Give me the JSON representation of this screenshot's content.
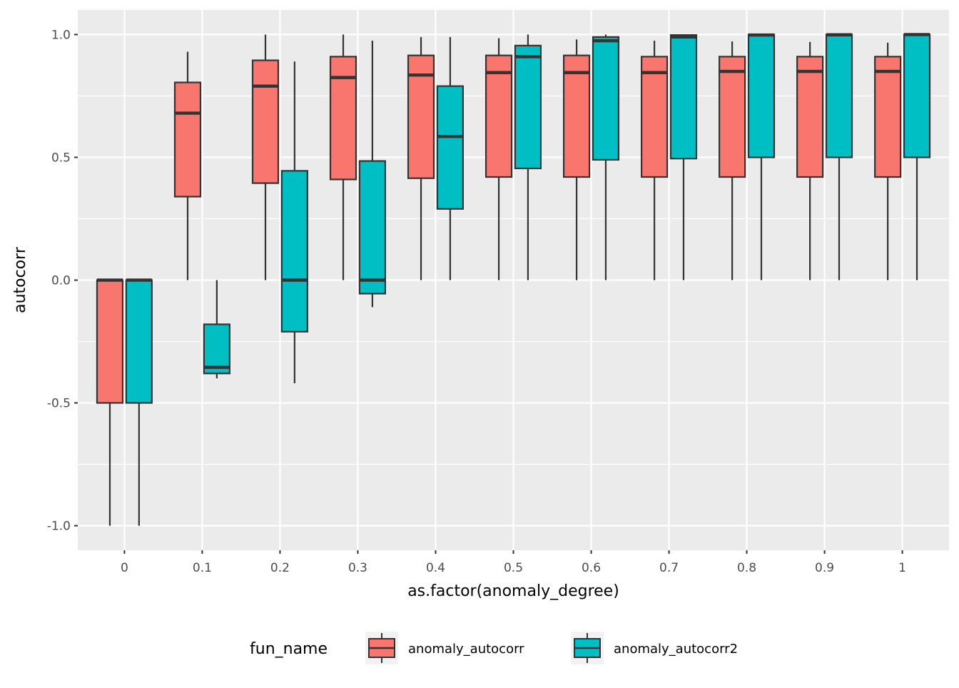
{
  "chart_data": {
    "type": "boxplot",
    "title": "",
    "xlabel": "as.factor(anomaly_degree)",
    "ylabel": "autocorr",
    "categories": [
      "0",
      "0.1",
      "0.2",
      "0.3",
      "0.4",
      "0.5",
      "0.6",
      "0.7",
      "0.8",
      "0.9",
      "1"
    ],
    "ylim": [
      -1.1,
      1.1
    ],
    "yticks": [
      -1.0,
      -0.5,
      0.0,
      0.5,
      1.0
    ],
    "ytick_labels": [
      "-1.0",
      "-0.5",
      "0.0",
      "0.5",
      "1.0"
    ],
    "grid": true,
    "legend": {
      "title": "fun_name",
      "position": "bottom"
    },
    "series": [
      {
        "name": "anomaly_autocorr",
        "color": "#F8766D",
        "boxes": [
          {
            "min": -1.0,
            "q1": -0.5,
            "median": 0.0,
            "q3": 0.0,
            "max": 0.0
          },
          {
            "min": 0.0,
            "q1": 0.34,
            "median": 0.68,
            "q3": 0.805,
            "max": 0.93
          },
          {
            "min": 0.0,
            "q1": 0.395,
            "median": 0.79,
            "q3": 0.895,
            "max": 1.0
          },
          {
            "min": 0.0,
            "q1": 0.41,
            "median": 0.825,
            "q3": 0.91,
            "max": 1.0
          },
          {
            "min": 0.0,
            "q1": 0.415,
            "median": 0.835,
            "q3": 0.915,
            "max": 0.99
          },
          {
            "min": 0.0,
            "q1": 0.42,
            "median": 0.845,
            "q3": 0.915,
            "max": 0.985
          },
          {
            "min": 0.0,
            "q1": 0.42,
            "median": 0.845,
            "q3": 0.915,
            "max": 0.98
          },
          {
            "min": 0.0,
            "q1": 0.42,
            "median": 0.845,
            "q3": 0.91,
            "max": 0.975
          },
          {
            "min": 0.0,
            "q1": 0.42,
            "median": 0.85,
            "q3": 0.91,
            "max": 0.972
          },
          {
            "min": 0.0,
            "q1": 0.42,
            "median": 0.85,
            "q3": 0.91,
            "max": 0.97
          },
          {
            "min": 0.0,
            "q1": 0.42,
            "median": 0.85,
            "q3": 0.91,
            "max": 0.967
          }
        ]
      },
      {
        "name": "anomaly_autocorr2",
        "color": "#00BFC4",
        "boxes": [
          {
            "min": -1.0,
            "q1": -0.5,
            "median": 0.0,
            "q3": 0.0,
            "max": 0.0
          },
          {
            "min": -0.4,
            "q1": -0.38,
            "median": -0.355,
            "q3": -0.18,
            "max": 0.0
          },
          {
            "min": -0.42,
            "q1": -0.21,
            "median": 0.0,
            "q3": 0.445,
            "max": 0.89
          },
          {
            "min": -0.11,
            "q1": -0.055,
            "median": 0.0,
            "q3": 0.485,
            "max": 0.975
          },
          {
            "min": 0.0,
            "q1": 0.29,
            "median": 0.585,
            "q3": 0.79,
            "max": 0.99
          },
          {
            "min": 0.0,
            "q1": 0.455,
            "median": 0.91,
            "q3": 0.955,
            "max": 1.0
          },
          {
            "min": 0.0,
            "q1": 0.49,
            "median": 0.975,
            "q3": 0.99,
            "max": 1.0
          },
          {
            "min": 0.0,
            "q1": 0.495,
            "median": 0.99,
            "q3": 0.998,
            "max": 1.0
          },
          {
            "min": 0.0,
            "q1": 0.5,
            "median": 0.998,
            "q3": 1.0,
            "max": 1.0
          },
          {
            "min": 0.0,
            "q1": 0.5,
            "median": 0.999,
            "q3": 1.0,
            "max": 1.0
          },
          {
            "min": 0.0,
            "q1": 0.5,
            "median": 1.0,
            "q3": 1.0,
            "max": 1.0
          }
        ]
      }
    ]
  }
}
